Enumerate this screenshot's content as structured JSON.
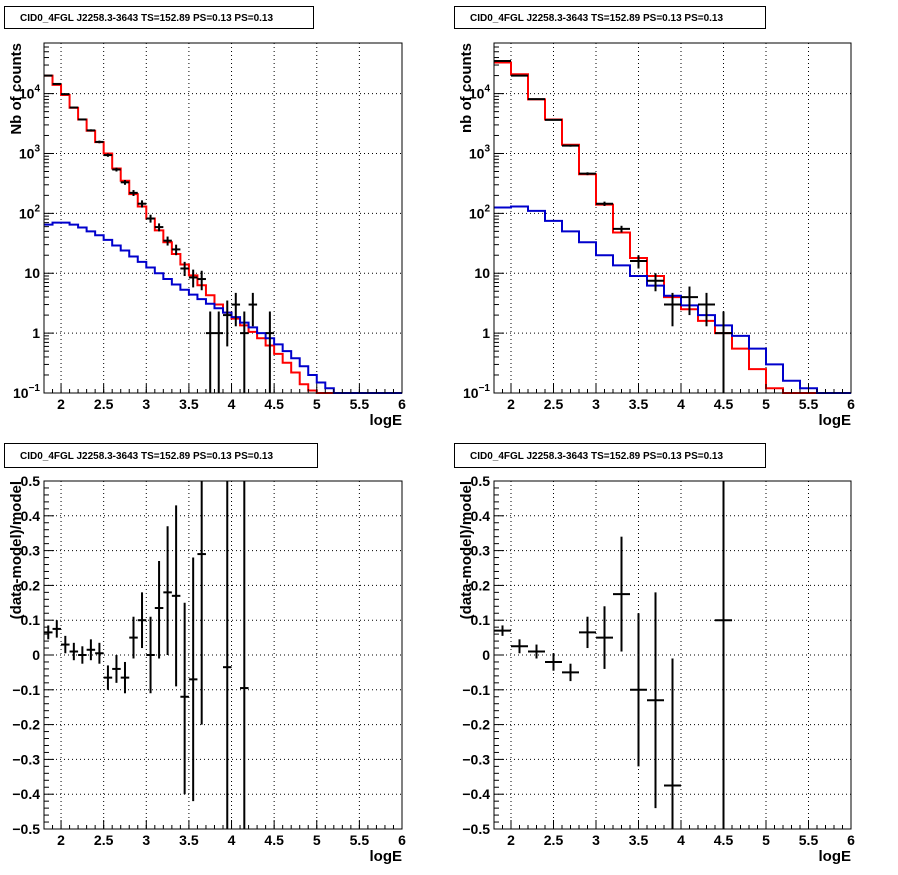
{
  "colors": {
    "data": "#000000",
    "total_model": "#ff0000",
    "background_model": "#0000cc",
    "grid": "#000000"
  },
  "chart_data": [
    {
      "id": "counts-left",
      "type": "line",
      "title": "CID0_4FGL J2258.3-3643 TS=152.89 PS=0.13 PS=0.13",
      "xlabel": "logE",
      "ylabel": "Nb of counts",
      "log_y": true,
      "grid": true,
      "xlim": [
        1.8,
        6.0
      ],
      "ylim": [
        0.1,
        70000
      ],
      "xticks": [
        "2",
        "2.5",
        "3",
        "3.5",
        "4",
        "4.5",
        "5",
        "5.5",
        "6"
      ],
      "yticks": [
        {
          "v": 0.1,
          "base": "10",
          "exp": "−1"
        },
        {
          "v": 1,
          "label": "1"
        },
        {
          "v": 10,
          "label": "10"
        },
        {
          "v": 100,
          "base": "10",
          "exp": "2"
        },
        {
          "v": 1000,
          "base": "10",
          "exp": "3"
        },
        {
          "v": 10000,
          "base": "10",
          "exp": "4"
        }
      ],
      "series": [
        {
          "role": "total_model",
          "edges": [
            1.8,
            1.9,
            2.0,
            2.1,
            2.2,
            2.3,
            2.4,
            2.5,
            2.6,
            2.7,
            2.8,
            2.9,
            3.0,
            3.1,
            3.2,
            3.3,
            3.4,
            3.5,
            3.6,
            3.7,
            3.8,
            3.9,
            4.0,
            4.1,
            4.2,
            4.3,
            4.4,
            4.5,
            4.6,
            4.7,
            4.8,
            4.9,
            5.0,
            5.1,
            5.2,
            5.3,
            5.4,
            5.5,
            5.6,
            5.7,
            5.8,
            5.9,
            6.0
          ],
          "values": [
            20000,
            14000,
            9500,
            5800,
            3700,
            2400,
            1550,
            1000,
            560,
            350,
            210,
            130,
            82,
            52,
            33,
            21,
            14,
            9.2,
            6.3,
            4.3,
            3.0,
            2.2,
            1.75,
            1.35,
            1.05,
            0.82,
            0.62,
            0.45,
            0.32,
            0.22,
            0.14,
            0.11,
            0.1,
            0.1,
            0.1,
            0.1,
            0.1,
            0.1,
            0.1,
            0.1,
            0.1,
            0.1
          ]
        },
        {
          "role": "background_model",
          "edges": [
            1.8,
            1.9,
            2.0,
            2.1,
            2.2,
            2.3,
            2.4,
            2.5,
            2.6,
            2.7,
            2.8,
            2.9,
            3.0,
            3.1,
            3.2,
            3.3,
            3.4,
            3.5,
            3.6,
            3.7,
            3.8,
            3.9,
            4.0,
            4.1,
            4.2,
            4.3,
            4.4,
            4.5,
            4.6,
            4.7,
            4.8,
            4.9,
            5.0,
            5.1,
            5.2,
            5.3,
            5.4,
            5.5,
            5.6,
            5.7,
            5.8,
            5.9,
            6.0
          ],
          "values": [
            65,
            70,
            70,
            65,
            58,
            50,
            43,
            36,
            29,
            24,
            19,
            15.5,
            12.5,
            10,
            8,
            6.5,
            5.3,
            4.4,
            3.7,
            3.1,
            2.6,
            2.2,
            1.85,
            1.5,
            1.25,
            1.0,
            0.82,
            0.65,
            0.5,
            0.38,
            0.28,
            0.2,
            0.15,
            0.12,
            0.1,
            0.1,
            0.1,
            0.1,
            0.1,
            0.1,
            0.1,
            0.1
          ]
        }
      ],
      "points": [
        {
          "x": 1.85,
          "y": 20000,
          "dx": 0.05,
          "ylo": 19700,
          "yhi": 20300
        },
        {
          "x": 1.95,
          "y": 14500,
          "dx": 0.05,
          "ylo": 14250,
          "yhi": 14750
        },
        {
          "x": 2.05,
          "y": 9800,
          "dx": 0.05,
          "ylo": 9600,
          "yhi": 10000
        },
        {
          "x": 2.15,
          "y": 5850,
          "dx": 0.05,
          "ylo": 5700,
          "yhi": 6000
        },
        {
          "x": 2.25,
          "y": 3700,
          "dx": 0.05,
          "ylo": 3600,
          "yhi": 3800
        },
        {
          "x": 2.35,
          "y": 2430,
          "dx": 0.05,
          "ylo": 2330,
          "yhi": 2530
        },
        {
          "x": 2.45,
          "y": 1560,
          "dx": 0.05,
          "ylo": 1480,
          "yhi": 1640
        },
        {
          "x": 2.55,
          "y": 940,
          "dx": 0.05,
          "ylo": 880,
          "yhi": 1000
        },
        {
          "x": 2.65,
          "y": 540,
          "dx": 0.05,
          "ylo": 500,
          "yhi": 580
        },
        {
          "x": 2.75,
          "y": 330,
          "dx": 0.05,
          "ylo": 300,
          "yhi": 360
        },
        {
          "x": 2.85,
          "y": 220,
          "dx": 0.05,
          "ylo": 195,
          "yhi": 245
        },
        {
          "x": 2.95,
          "y": 145,
          "dx": 0.05,
          "ylo": 125,
          "yhi": 165
        },
        {
          "x": 3.05,
          "y": 82,
          "dx": 0.05,
          "ylo": 70,
          "yhi": 95
        },
        {
          "x": 3.15,
          "y": 59,
          "dx": 0.05,
          "ylo": 50,
          "yhi": 68
        },
        {
          "x": 3.25,
          "y": 35,
          "dx": 0.05,
          "ylo": 29,
          "yhi": 41
        },
        {
          "x": 3.35,
          "y": 25,
          "dx": 0.05,
          "ylo": 20,
          "yhi": 30
        },
        {
          "x": 3.45,
          "y": 12,
          "dx": 0.05,
          "ylo": 9,
          "yhi": 15.5
        },
        {
          "x": 3.55,
          "y": 8.5,
          "dx": 0.05,
          "ylo": 5.8,
          "yhi": 11.5
        },
        {
          "x": 3.65,
          "y": 8,
          "dx": 0.05,
          "ylo": 5.2,
          "yhi": 11
        },
        {
          "x": 3.75,
          "y": 1,
          "dx": 0.05,
          "ylo": 0.1,
          "yhi": 2.3
        },
        {
          "x": 3.85,
          "y": 1,
          "dx": 0.05,
          "ylo": 0.1,
          "yhi": 2.3
        },
        {
          "x": 3.95,
          "y": 2,
          "dx": 0.05,
          "ylo": 0.6,
          "yhi": 3.5
        },
        {
          "x": 4.05,
          "y": 3,
          "dx": 0.05,
          "ylo": 1.3,
          "yhi": 4.7
        },
        {
          "x": 4.15,
          "y": 1,
          "dx": 0.05,
          "ylo": 0.1,
          "yhi": 2.3
        },
        {
          "x": 4.25,
          "y": 3,
          "dx": 0.05,
          "ylo": 1.3,
          "yhi": 4.7
        },
        {
          "x": 4.45,
          "y": 1,
          "dx": 0.05,
          "ylo": 0.1,
          "yhi": 2.3
        }
      ]
    },
    {
      "id": "counts-right",
      "type": "line",
      "title": "CID0_4FGL J2258.3-3643 TS=152.89 PS=0.13 PS=0.13",
      "xlabel": "logE",
      "ylabel": "nb of counts",
      "log_y": true,
      "grid": true,
      "xlim": [
        1.8,
        6.0
      ],
      "ylim": [
        0.1,
        70000
      ],
      "xticks": [
        "2",
        "2.5",
        "3",
        "3.5",
        "4",
        "4.5",
        "5",
        "5.5",
        "6"
      ],
      "yticks": [
        {
          "v": 0.1,
          "base": "10",
          "exp": "−1"
        },
        {
          "v": 1,
          "label": "1"
        },
        {
          "v": 10,
          "label": "10"
        },
        {
          "v": 100,
          "base": "10",
          "exp": "2"
        },
        {
          "v": 1000,
          "base": "10",
          "exp": "3"
        },
        {
          "v": 10000,
          "base": "10",
          "exp": "4"
        }
      ],
      "series": [
        {
          "role": "total_model",
          "edges": [
            1.8,
            2.0,
            2.2,
            2.4,
            2.6,
            2.8,
            3.0,
            3.2,
            3.4,
            3.6,
            3.8,
            4.0,
            4.2,
            4.4,
            4.6,
            4.8,
            5.0,
            5.2,
            5.4,
            5.6,
            5.8,
            6.0
          ],
          "values": [
            33000,
            21000,
            8000,
            3700,
            1400,
            450,
            140,
            48,
            18,
            9,
            4,
            2.5,
            1.6,
            1.0,
            0.55,
            0.25,
            0.12,
            0.1,
            0.1,
            0.1,
            0.1
          ]
        },
        {
          "role": "background_model",
          "edges": [
            1.8,
            2.0,
            2.2,
            2.4,
            2.6,
            2.8,
            3.0,
            3.2,
            3.4,
            3.6,
            3.8,
            4.0,
            4.2,
            4.4,
            4.6,
            4.8,
            5.0,
            5.2,
            5.4,
            5.6,
            5.8,
            6.0
          ],
          "values": [
            125,
            130,
            110,
            75,
            50,
            33,
            20,
            13.5,
            9,
            6.2,
            4.2,
            2.9,
            2.0,
            1.35,
            0.9,
            0.55,
            0.3,
            0.16,
            0.12,
            0.1,
            0.1
          ]
        }
      ],
      "points": [
        {
          "x": 1.9,
          "y": 35000,
          "dx": 0.1,
          "ylo": 34500,
          "yhi": 35500
        },
        {
          "x": 2.1,
          "y": 20000,
          "dx": 0.1,
          "ylo": 19700,
          "yhi": 20300
        },
        {
          "x": 2.3,
          "y": 8100,
          "dx": 0.1,
          "ylo": 7900,
          "yhi": 8300
        },
        {
          "x": 2.5,
          "y": 3650,
          "dx": 0.1,
          "ylo": 3550,
          "yhi": 3750
        },
        {
          "x": 2.7,
          "y": 1350,
          "dx": 0.1,
          "ylo": 1300,
          "yhi": 1400
        },
        {
          "x": 2.9,
          "y": 460,
          "dx": 0.1,
          "ylo": 435,
          "yhi": 485
        },
        {
          "x": 3.1,
          "y": 145,
          "dx": 0.1,
          "ylo": 133,
          "yhi": 157
        },
        {
          "x": 3.3,
          "y": 55,
          "dx": 0.1,
          "ylo": 48,
          "yhi": 62
        },
        {
          "x": 3.5,
          "y": 16,
          "dx": 0.1,
          "ylo": 12,
          "yhi": 20
        },
        {
          "x": 3.7,
          "y": 7.5,
          "dx": 0.1,
          "ylo": 5,
          "yhi": 10
        },
        {
          "x": 3.9,
          "y": 3,
          "dx": 0.1,
          "ylo": 1.3,
          "yhi": 4.7
        },
        {
          "x": 4.1,
          "y": 4,
          "dx": 0.1,
          "ylo": 2,
          "yhi": 6
        },
        {
          "x": 4.3,
          "y": 3,
          "dx": 0.1,
          "ylo": 1.3,
          "yhi": 4.7
        },
        {
          "x": 4.5,
          "y": 1,
          "dx": 0.1,
          "ylo": 0.1,
          "yhi": 2.3
        }
      ]
    },
    {
      "id": "residuals-left",
      "type": "scatter",
      "title": "CID0_4FGL J2258.3-3643 TS=152.89 PS=0.13 PS=0.13",
      "xlabel": "logE",
      "ylabel": "(data-model)/model",
      "grid": true,
      "xlim": [
        1.8,
        6.0
      ],
      "ylim": [
        -0.5,
        0.5
      ],
      "xticks": [
        "2",
        "2.5",
        "3",
        "3.5",
        "4",
        "4.5",
        "5",
        "5.5",
        "6"
      ],
      "yticks": [
        {
          "v": -0.5,
          "label": "−0.5"
        },
        {
          "v": -0.4,
          "label": "−0.4"
        },
        {
          "v": -0.3,
          "label": "−0.3"
        },
        {
          "v": -0.2,
          "label": "−0.2"
        },
        {
          "v": -0.1,
          "label": "−0.1"
        },
        {
          "v": 0,
          "label": "0"
        },
        {
          "v": 0.1,
          "label": "0.1"
        },
        {
          "v": 0.2,
          "label": "0.2"
        },
        {
          "v": 0.3,
          "label": "0.3"
        },
        {
          "v": 0.4,
          "label": "0.4"
        },
        {
          "v": 0.5,
          "label": "0.5"
        }
      ],
      "points": [
        {
          "x": 1.85,
          "y": 0.065,
          "dx": 0.05,
          "ylo": 0.045,
          "yhi": 0.085
        },
        {
          "x": 1.95,
          "y": 0.075,
          "dx": 0.05,
          "ylo": 0.05,
          "yhi": 0.1
        },
        {
          "x": 2.05,
          "y": 0.03,
          "dx": 0.05,
          "ylo": 0.005,
          "yhi": 0.055
        },
        {
          "x": 2.15,
          "y": 0.01,
          "dx": 0.05,
          "ylo": -0.015,
          "yhi": 0.035
        },
        {
          "x": 2.25,
          "y": 0.0,
          "dx": 0.05,
          "ylo": -0.025,
          "yhi": 0.025
        },
        {
          "x": 2.35,
          "y": 0.015,
          "dx": 0.05,
          "ylo": -0.015,
          "yhi": 0.045
        },
        {
          "x": 2.45,
          "y": 0.005,
          "dx": 0.05,
          "ylo": -0.025,
          "yhi": 0.035
        },
        {
          "x": 2.55,
          "y": -0.065,
          "dx": 0.05,
          "ylo": -0.1,
          "yhi": -0.03
        },
        {
          "x": 2.65,
          "y": -0.04,
          "dx": 0.05,
          "ylo": -0.08,
          "yhi": 0.0
        },
        {
          "x": 2.75,
          "y": -0.065,
          "dx": 0.05,
          "ylo": -0.11,
          "yhi": -0.02
        },
        {
          "x": 2.85,
          "y": 0.05,
          "dx": 0.05,
          "ylo": -0.01,
          "yhi": 0.11
        },
        {
          "x": 2.95,
          "y": 0.1,
          "dx": 0.05,
          "ylo": 0.02,
          "yhi": 0.18
        },
        {
          "x": 3.05,
          "y": 0.0,
          "dx": 0.05,
          "ylo": -0.11,
          "yhi": 0.11
        },
        {
          "x": 3.15,
          "y": 0.135,
          "dx": 0.05,
          "ylo": -0.01,
          "yhi": 0.27
        },
        {
          "x": 3.25,
          "y": 0.18,
          "dx": 0.05,
          "ylo": 0.0,
          "yhi": 0.37
        },
        {
          "x": 3.35,
          "y": 0.17,
          "dx": 0.05,
          "ylo": -0.09,
          "yhi": 0.43
        },
        {
          "x": 3.45,
          "y": -0.12,
          "dx": 0.05,
          "ylo": -0.4,
          "yhi": 0.15
        },
        {
          "x": 3.55,
          "y": -0.07,
          "dx": 0.05,
          "ylo": -0.42,
          "yhi": 0.28
        },
        {
          "x": 3.65,
          "y": 0.29,
          "dx": 0.05,
          "ylo": -0.2,
          "yhi": 0.5
        },
        {
          "x": 3.95,
          "y": -0.035,
          "dx": 0.05,
          "ylo": -0.5,
          "yhi": 0.5
        },
        {
          "x": 4.15,
          "y": -0.095,
          "dx": 0.05,
          "ylo": -0.5,
          "yhi": 0.5
        }
      ]
    },
    {
      "id": "residuals-right",
      "type": "scatter",
      "title": "CID0_4FGL J2258.3-3643 TS=152.89 PS=0.13 PS=0.13",
      "xlabel": "logE",
      "ylabel": "(data-model)/model",
      "grid": true,
      "xlim": [
        1.8,
        6.0
      ],
      "ylim": [
        -0.5,
        0.5
      ],
      "xticks": [
        "2",
        "2.5",
        "3",
        "3.5",
        "4",
        "4.5",
        "5",
        "5.5",
        "6"
      ],
      "yticks": [
        {
          "v": -0.5,
          "label": "−0.5"
        },
        {
          "v": -0.4,
          "label": "−0.4"
        },
        {
          "v": -0.3,
          "label": "−0.3"
        },
        {
          "v": -0.2,
          "label": "−0.2"
        },
        {
          "v": -0.1,
          "label": "−0.1"
        },
        {
          "v": 0,
          "label": "0"
        },
        {
          "v": 0.1,
          "label": "0.1"
        },
        {
          "v": 0.2,
          "label": "0.2"
        },
        {
          "v": 0.3,
          "label": "0.3"
        },
        {
          "v": 0.4,
          "label": "0.4"
        },
        {
          "v": 0.5,
          "label": "0.5"
        }
      ],
      "points": [
        {
          "x": 1.9,
          "y": 0.07,
          "dx": 0.1,
          "ylo": 0.055,
          "yhi": 0.085
        },
        {
          "x": 2.1,
          "y": 0.025,
          "dx": 0.1,
          "ylo": 0.005,
          "yhi": 0.045
        },
        {
          "x": 2.3,
          "y": 0.01,
          "dx": 0.1,
          "ylo": -0.01,
          "yhi": 0.03
        },
        {
          "x": 2.5,
          "y": -0.02,
          "dx": 0.1,
          "ylo": -0.045,
          "yhi": 0.005
        },
        {
          "x": 2.7,
          "y": -0.05,
          "dx": 0.1,
          "ylo": -0.075,
          "yhi": -0.025
        },
        {
          "x": 2.9,
          "y": 0.065,
          "dx": 0.1,
          "ylo": 0.02,
          "yhi": 0.11
        },
        {
          "x": 3.1,
          "y": 0.05,
          "dx": 0.1,
          "ylo": -0.04,
          "yhi": 0.14
        },
        {
          "x": 3.3,
          "y": 0.175,
          "dx": 0.1,
          "ylo": 0.01,
          "yhi": 0.34
        },
        {
          "x": 3.5,
          "y": -0.1,
          "dx": 0.1,
          "ylo": -0.32,
          "yhi": 0.12
        },
        {
          "x": 3.7,
          "y": -0.13,
          "dx": 0.1,
          "ylo": -0.44,
          "yhi": 0.18
        },
        {
          "x": 3.9,
          "y": -0.375,
          "dx": 0.1,
          "ylo": -0.5,
          "yhi": -0.01
        },
        {
          "x": 4.5,
          "y": 0.1,
          "dx": 0.1,
          "ylo": -0.5,
          "yhi": 0.5
        }
      ]
    }
  ]
}
